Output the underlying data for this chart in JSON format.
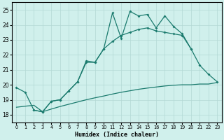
{
  "xlabel": "Humidex (Indice chaleur)",
  "x_values": [
    0,
    1,
    2,
    3,
    4,
    5,
    6,
    7,
    8,
    9,
    10,
    11,
    12,
    13,
    14,
    15,
    16,
    17,
    18,
    19,
    20,
    21,
    22,
    23
  ],
  "line_top": [
    19.8,
    19.5,
    18.3,
    18.2,
    18.9,
    19.0,
    19.6,
    20.2,
    21.6,
    21.5,
    22.4,
    24.8,
    23.1,
    24.9,
    24.6,
    24.7,
    23.8,
    24.6,
    23.9,
    23.4,
    22.4,
    21.3,
    20.7,
    20.2
  ],
  "line_mid_x": [
    2,
    3,
    4,
    5,
    6,
    7,
    8,
    9,
    10,
    11,
    12,
    13,
    14,
    15,
    16,
    17,
    18,
    19,
    20
  ],
  "line_mid_y": [
    18.3,
    18.2,
    18.9,
    19.0,
    19.6,
    20.2,
    21.5,
    21.5,
    22.4,
    22.9,
    23.3,
    23.5,
    23.7,
    23.8,
    23.6,
    23.5,
    23.4,
    23.3,
    22.4
  ],
  "line_bot_x": [
    0,
    1,
    2,
    3,
    4,
    5,
    6,
    7,
    8,
    9,
    10,
    11,
    12,
    13,
    14,
    15,
    16,
    17,
    18,
    19,
    20,
    21,
    22,
    23
  ],
  "line_bot_y": [
    18.5,
    18.57,
    18.63,
    18.2,
    18.38,
    18.55,
    18.7,
    18.85,
    19.0,
    19.13,
    19.25,
    19.38,
    19.5,
    19.6,
    19.7,
    19.78,
    19.85,
    19.92,
    19.97,
    20.0,
    20.0,
    20.05,
    20.05,
    20.15
  ],
  "line_color": "#1b7b6e",
  "bg_color": "#d0f0ec",
  "grid_color": "#b2d8d4",
  "ylim": [
    17.5,
    25.5
  ],
  "xlim": [
    -0.5,
    23.5
  ],
  "yticks": [
    18,
    19,
    20,
    21,
    22,
    23,
    24,
    25
  ],
  "xtick_labels": [
    "0",
    "1",
    "2",
    "3",
    "4",
    "5",
    "6",
    "7",
    "8",
    "9",
    "10",
    "11",
    "12",
    "13",
    "14",
    "15",
    "16",
    "17",
    "18",
    "19",
    "20",
    "21",
    "22",
    "23"
  ]
}
